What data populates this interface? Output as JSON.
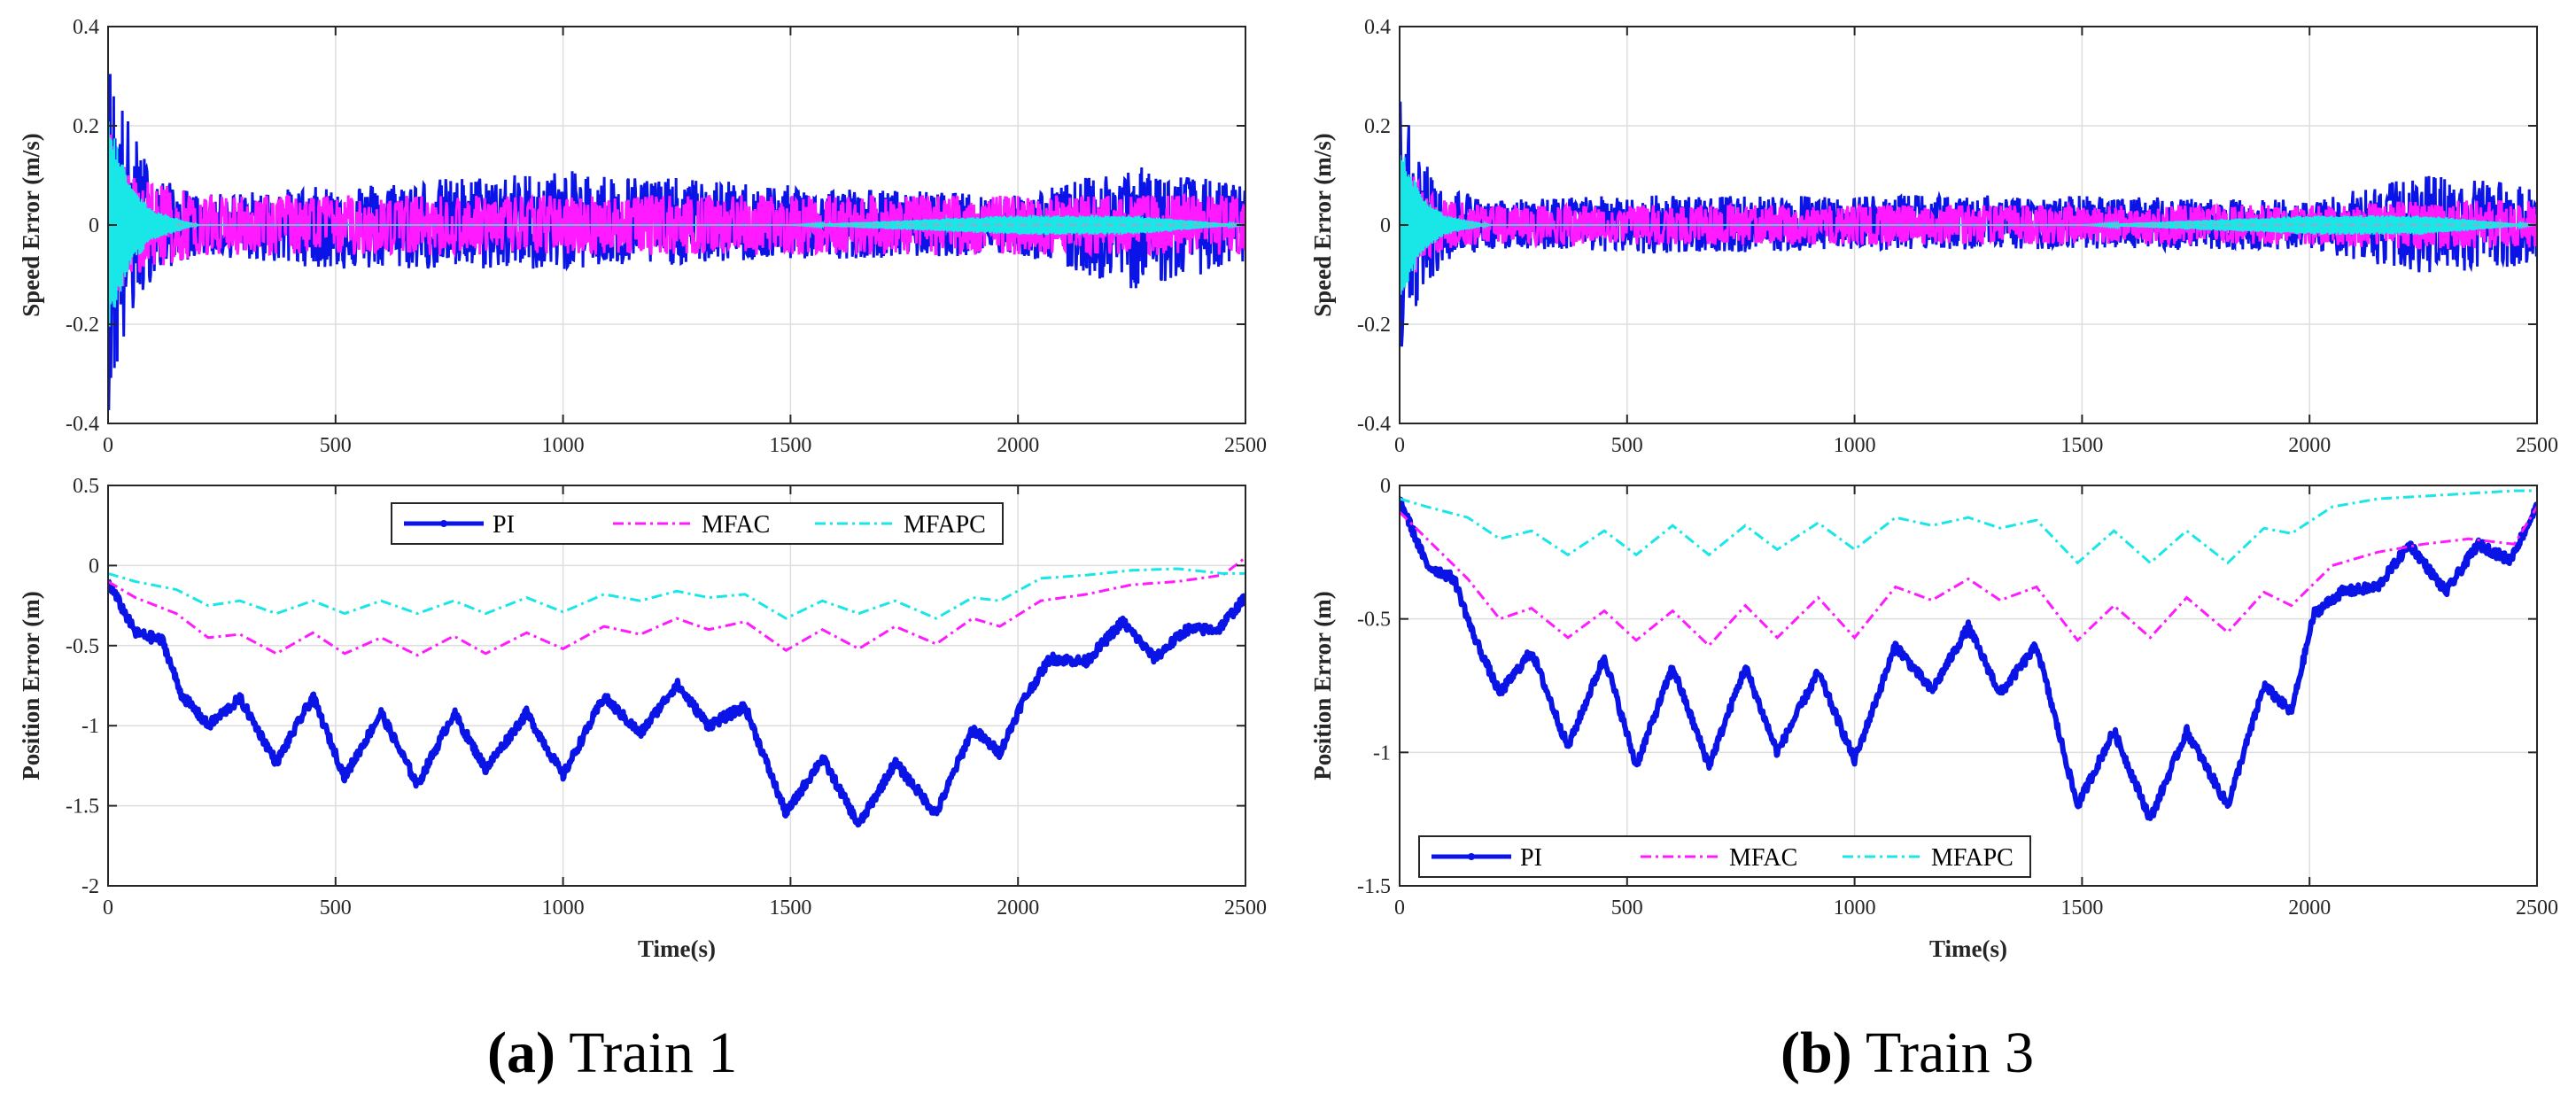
{
  "colors": {
    "PI": "#0a14e6",
    "MFAC": "#ff1aff",
    "MFAPC": "#19e6e6",
    "grid": "#dedede",
    "axis": "#262626"
  },
  "panels": [
    {
      "caption_letter": "(a)",
      "caption_text": " Train 1",
      "speed": {
        "ylabel": "Speed Error (m/s)",
        "ylim": [
          -0.4,
          0.4
        ],
        "yticks": [
          0.4,
          0.2,
          0,
          -0.2,
          -0.4
        ],
        "ytick_labels": [
          "0.4",
          "0.2",
          "0",
          "-0.2",
          "-0.4"
        ]
      },
      "position": {
        "ylabel": "Position Error (m)",
        "xlabel": "Time(s)",
        "ylim": [
          -2,
          0.5
        ],
        "yticks": [
          0.5,
          0,
          -0.5,
          -1,
          -1.5,
          -2
        ],
        "ytick_labels": [
          "0.5",
          "0",
          "-0.5",
          "-1",
          "-1.5",
          "-2"
        ],
        "legend_placement": "top-center"
      },
      "xticks": [
        0,
        500,
        1000,
        1500,
        2000,
        2500
      ],
      "xtick_labels": [
        "0",
        "500",
        "1000",
        "1500",
        "2000",
        "2500"
      ]
    },
    {
      "caption_letter": "(b)",
      "caption_text": " Train 3",
      "speed": {
        "ylabel": "Speed Error (m/s)",
        "ylim": [
          -0.4,
          0.4
        ],
        "yticks": [
          0.4,
          0.2,
          0,
          -0.2,
          -0.4
        ],
        "ytick_labels": [
          "0.4",
          "0.2",
          "0",
          "-0.2",
          "-0.4"
        ]
      },
      "position": {
        "ylabel": "Position Error (m)",
        "xlabel": "Time(s)",
        "ylim": [
          -1.5,
          0
        ],
        "yticks": [
          0,
          -0.5,
          -1,
          -1.5
        ],
        "ytick_labels": [
          "0",
          "-0.5",
          "-1",
          "-1.5"
        ],
        "legend_placement": "bottom-left"
      },
      "xticks": [
        0,
        500,
        1000,
        1500,
        2000,
        2500
      ],
      "xtick_labels": [
        "0",
        "500",
        "1000",
        "1500",
        "2000",
        "2500"
      ]
    }
  ],
  "legend": [
    "PI",
    "MFAC",
    "MFAPC"
  ],
  "chart_data": [
    {
      "type": "line",
      "title": "",
      "xlabel": "",
      "ylabel": "Speed Error (m/s)",
      "xlim": [
        0,
        2500
      ],
      "ylim": [
        -0.4,
        0.4
      ],
      "grid": true,
      "note_values_are_envelope": true,
      "x": [
        0,
        50,
        100,
        200,
        500,
        1000,
        1500,
        2000,
        2250,
        2500
      ],
      "series": [
        {
          "name": "PI",
          "upper": [
            0.35,
            0.2,
            0.1,
            0.06,
            0.08,
            0.11,
            0.08,
            0.06,
            0.12,
            0.08
          ],
          "lower": [
            -0.38,
            -0.2,
            -0.1,
            -0.06,
            -0.09,
            -0.09,
            -0.07,
            -0.06,
            -0.13,
            -0.08
          ]
        },
        {
          "name": "MFAC",
          "upper": [
            0.2,
            0.1,
            0.09,
            0.06,
            0.06,
            0.06,
            0.06,
            0.06,
            0.06,
            0.06
          ],
          "lower": [
            -0.2,
            -0.1,
            -0.09,
            -0.06,
            -0.06,
            -0.06,
            -0.06,
            -0.06,
            -0.06,
            -0.06
          ]
        },
        {
          "name": "MFAPC",
          "upper": [
            0.22,
            0.08,
            0.03,
            0.0,
            0.0,
            0.0,
            0.0,
            0.02,
            0.02,
            0.0
          ],
          "lower": [
            -0.22,
            -0.08,
            -0.03,
            0.0,
            0.0,
            0.0,
            0.0,
            -0.02,
            -0.02,
            0.0
          ]
        }
      ]
    },
    {
      "type": "line",
      "title": "",
      "xlabel": "Time(s)",
      "ylabel": "Position Error (m)",
      "xlim": [
        0,
        2500
      ],
      "ylim": [
        -2,
        0.5
      ],
      "grid": true,
      "legend": "top-center",
      "series": [
        {
          "name": "PI",
          "x": [
            0,
            60,
            120,
            160,
            220,
            290,
            370,
            450,
            520,
            600,
            680,
            760,
            830,
            920,
            1000,
            1090,
            1170,
            1250,
            1320,
            1400,
            1490,
            1570,
            1650,
            1730,
            1820,
            1900,
            1960,
            2010,
            2070,
            2150,
            2230,
            2300,
            2370,
            2440,
            2500
          ],
          "y": [
            -0.1,
            -0.42,
            -0.47,
            -0.8,
            -1.0,
            -0.83,
            -1.23,
            -0.82,
            -1.32,
            -0.92,
            -1.37,
            -0.92,
            -1.27,
            -0.92,
            -1.31,
            -0.82,
            -1.05,
            -0.74,
            -1.0,
            -0.88,
            -1.55,
            -1.2,
            -1.62,
            -1.23,
            -1.55,
            -1.02,
            -1.17,
            -0.85,
            -0.58,
            -0.6,
            -0.35,
            -0.58,
            -0.4,
            -0.4,
            -0.2
          ]
        },
        {
          "name": "MFAC",
          "x": [
            0,
            60,
            150,
            220,
            290,
            370,
            450,
            520,
            600,
            680,
            760,
            830,
            920,
            1000,
            1090,
            1170,
            1250,
            1320,
            1400,
            1490,
            1570,
            1650,
            1730,
            1820,
            1900,
            1960,
            2050,
            2150,
            2250,
            2350,
            2450,
            2500
          ],
          "y": [
            -0.1,
            -0.2,
            -0.3,
            -0.45,
            -0.43,
            -0.55,
            -0.42,
            -0.55,
            -0.45,
            -0.56,
            -0.44,
            -0.55,
            -0.42,
            -0.52,
            -0.38,
            -0.43,
            -0.33,
            -0.4,
            -0.35,
            -0.53,
            -0.4,
            -0.52,
            -0.38,
            -0.49,
            -0.33,
            -0.38,
            -0.22,
            -0.18,
            -0.12,
            -0.1,
            -0.06,
            0.05
          ]
        },
        {
          "name": "MFAPC",
          "x": [
            0,
            60,
            150,
            220,
            290,
            370,
            450,
            520,
            600,
            680,
            760,
            830,
            920,
            1000,
            1090,
            1170,
            1250,
            1320,
            1400,
            1490,
            1570,
            1650,
            1730,
            1820,
            1900,
            1960,
            2050,
            2150,
            2250,
            2350,
            2450,
            2500
          ],
          "y": [
            -0.05,
            -0.1,
            -0.15,
            -0.25,
            -0.22,
            -0.3,
            -0.22,
            -0.3,
            -0.22,
            -0.3,
            -0.22,
            -0.3,
            -0.2,
            -0.29,
            -0.18,
            -0.22,
            -0.16,
            -0.2,
            -0.18,
            -0.33,
            -0.22,
            -0.3,
            -0.22,
            -0.33,
            -0.2,
            -0.22,
            -0.08,
            -0.06,
            -0.03,
            -0.02,
            -0.05,
            -0.05
          ]
        }
      ]
    },
    {
      "type": "line",
      "title": "",
      "xlabel": "",
      "ylabel": "Speed Error (m/s)",
      "xlim": [
        0,
        2500
      ],
      "ylim": [
        -0.4,
        0.4
      ],
      "grid": true,
      "note_values_are_envelope": true,
      "x": [
        0,
        50,
        100,
        200,
        500,
        1000,
        1500,
        2000,
        2250,
        2500
      ],
      "series": [
        {
          "name": "PI",
          "upper": [
            0.27,
            0.14,
            0.08,
            0.05,
            0.06,
            0.06,
            0.06,
            0.05,
            0.1,
            0.08
          ],
          "lower": [
            -0.27,
            -0.14,
            -0.08,
            -0.05,
            -0.06,
            -0.05,
            -0.05,
            -0.05,
            -0.1,
            -0.08
          ]
        },
        {
          "name": "MFAC",
          "upper": [
            0.15,
            0.08,
            0.05,
            0.04,
            0.04,
            0.04,
            0.04,
            0.04,
            0.05,
            0.05
          ],
          "lower": [
            -0.15,
            -0.08,
            -0.05,
            -0.04,
            -0.04,
            -0.04,
            -0.04,
            -0.04,
            -0.05,
            -0.05
          ]
        },
        {
          "name": "MFAPC",
          "upper": [
            0.16,
            0.06,
            0.02,
            0.0,
            0.0,
            0.0,
            0.0,
            0.02,
            0.02,
            0.0
          ],
          "lower": [
            -0.16,
            -0.06,
            -0.02,
            0.0,
            0.0,
            0.0,
            0.0,
            -0.02,
            -0.02,
            0.0
          ]
        }
      ]
    },
    {
      "type": "line",
      "title": "",
      "xlabel": "Time(s)",
      "ylabel": "Position Error (m)",
      "xlim": [
        0,
        2500
      ],
      "ylim": [
        -1.5,
        0
      ],
      "grid": true,
      "legend": "bottom-left",
      "series": [
        {
          "name": "PI",
          "x": [
            0,
            60,
            120,
            160,
            220,
            290,
            370,
            450,
            520,
            600,
            680,
            760,
            830,
            920,
            1000,
            1090,
            1170,
            1250,
            1320,
            1400,
            1490,
            1570,
            1650,
            1730,
            1820,
            1900,
            1960,
            2010,
            2070,
            2150,
            2220,
            2300,
            2370,
            2440,
            2500
          ],
          "y": [
            -0.05,
            -0.3,
            -0.35,
            -0.55,
            -0.78,
            -0.62,
            -0.98,
            -0.64,
            -1.05,
            -0.68,
            -1.05,
            -0.68,
            -1.0,
            -0.7,
            -1.03,
            -0.6,
            -0.77,
            -0.53,
            -0.78,
            -0.6,
            -1.2,
            -0.92,
            -1.25,
            -0.92,
            -1.2,
            -0.75,
            -0.85,
            -0.48,
            -0.4,
            -0.38,
            -0.22,
            -0.4,
            -0.22,
            -0.28,
            -0.08
          ]
        },
        {
          "name": "MFAC",
          "x": [
            0,
            60,
            150,
            220,
            290,
            370,
            450,
            520,
            600,
            680,
            760,
            830,
            920,
            1000,
            1090,
            1170,
            1250,
            1320,
            1400,
            1490,
            1570,
            1650,
            1730,
            1820,
            1900,
            1960,
            2050,
            2150,
            2250,
            2350,
            2450,
            2500
          ],
          "y": [
            -0.1,
            -0.2,
            -0.35,
            -0.5,
            -0.46,
            -0.57,
            -0.47,
            -0.58,
            -0.47,
            -0.6,
            -0.45,
            -0.57,
            -0.42,
            -0.57,
            -0.38,
            -0.43,
            -0.35,
            -0.43,
            -0.38,
            -0.58,
            -0.45,
            -0.57,
            -0.42,
            -0.55,
            -0.4,
            -0.45,
            -0.3,
            -0.25,
            -0.22,
            -0.2,
            -0.22,
            -0.08
          ]
        },
        {
          "name": "MFAPC",
          "x": [
            0,
            60,
            150,
            220,
            290,
            370,
            450,
            520,
            600,
            680,
            760,
            830,
            920,
            1000,
            1090,
            1170,
            1250,
            1320,
            1400,
            1490,
            1570,
            1650,
            1730,
            1820,
            1900,
            1960,
            2050,
            2150,
            2250,
            2350,
            2450,
            2500
          ],
          "y": [
            -0.05,
            -0.08,
            -0.12,
            -0.2,
            -0.17,
            -0.26,
            -0.17,
            -0.26,
            -0.15,
            -0.26,
            -0.15,
            -0.24,
            -0.14,
            -0.24,
            -0.12,
            -0.15,
            -0.12,
            -0.16,
            -0.13,
            -0.29,
            -0.17,
            -0.29,
            -0.17,
            -0.29,
            -0.16,
            -0.18,
            -0.08,
            -0.05,
            -0.04,
            -0.03,
            -0.02,
            -0.02
          ]
        }
      ]
    }
  ]
}
